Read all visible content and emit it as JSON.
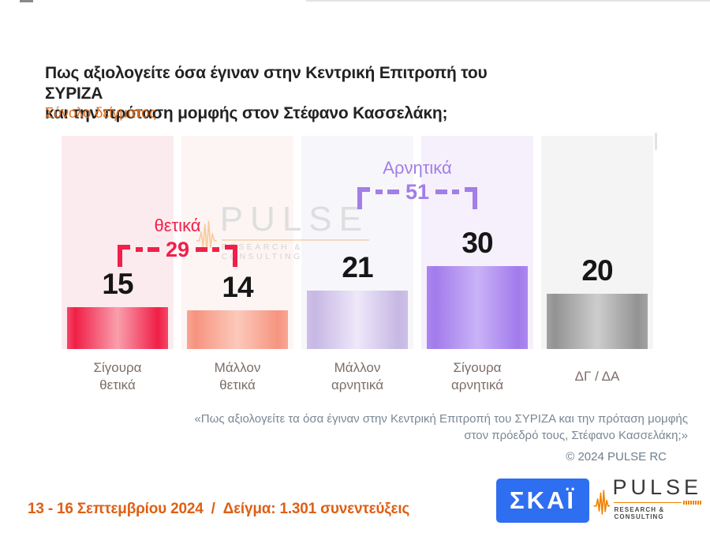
{
  "header": {
    "title_line1": "Πως αξιολογείτε όσα έγιναν στην Κεντρική Επιτροπή του ΣΥΡΙΖΑ",
    "title_line2": "και την πρόταση μομφής στον Στέφανο Κασσελάκη;",
    "subtitle": "Σύνολο δείγματος"
  },
  "chart_data": {
    "type": "bar",
    "title": "Πως αξιολογείτε όσα έγιναν στην Κεντρική Επιτροπή του ΣΥΡΙΖΑ και την πρόταση μομφής στον Στέφανο Κασσελάκη; (Σύνολο δείγματος)",
    "categories": [
      "Σίγουρα θετικά",
      "Μάλλον θετικά",
      "Μάλλον αρνητικά",
      "Σίγουρα αρνητικά",
      "ΔΓ / ΔΑ"
    ],
    "values": [
      15,
      14,
      21,
      30,
      20
    ],
    "unit": "percent",
    "value_labels_shown": true,
    "axis_shown": false,
    "grid": false,
    "legend": "none",
    "groups": [
      {
        "label": "θετικά",
        "value": 29,
        "spans": [
          "Σίγουρα θετικά",
          "Μάλλον θετικά"
        ],
        "color": "#f0204a"
      },
      {
        "label": "Αρνητικά",
        "value": 51,
        "spans": [
          "Μάλλον αρνητικά",
          "Σίγουρα αρνητικά"
        ],
        "color": "#a27ee6"
      }
    ],
    "bar_colors": [
      {
        "edge": "#f4486a",
        "dark": "#f01f46",
        "light": "#f99fad"
      },
      {
        "edge": "#f8a794",
        "dark": "#f69480",
        "light": "#fcc9ba"
      },
      {
        "edge": "#cdbfe7",
        "dark": "#c7b8e4",
        "light": "#eee8f9"
      },
      {
        "edge": "#ab87ee",
        "dark": "#a27bec",
        "light": "#c9b3f7"
      },
      {
        "edge": "#a2a2a2",
        "dark": "#939393",
        "light": "#cdcdcd"
      }
    ],
    "column_bg": [
      "#fcebee",
      "#fdf5f4",
      "#f7f6fa",
      "#f5f0fb",
      "#f4f4f5"
    ]
  },
  "watermark": {
    "brand": "PULSE",
    "tagline": "RESEARCH & CONSULTING"
  },
  "footnote": "«Πως αξιολογείτε τα όσα έγιναν στην Κεντρική Επιτροπή του ΣΥΡΙΖΑ και την πρόταση μομφής στον πρόεδρό τους, Στέφανο Κασσελάκη;»",
  "copyright": "© 2024 PULSE RC",
  "footer": {
    "date_range": "13 - 16 Σεπτεμβρίου 2024",
    "separator": "/",
    "sample": "Δείγμα:  1.301 συνεντεύξεις"
  },
  "logos": {
    "skai": "ΣΚΑΪ",
    "pulse_brand": "PULSE",
    "pulse_tagline": "RESEARCH & CONSULTING"
  }
}
